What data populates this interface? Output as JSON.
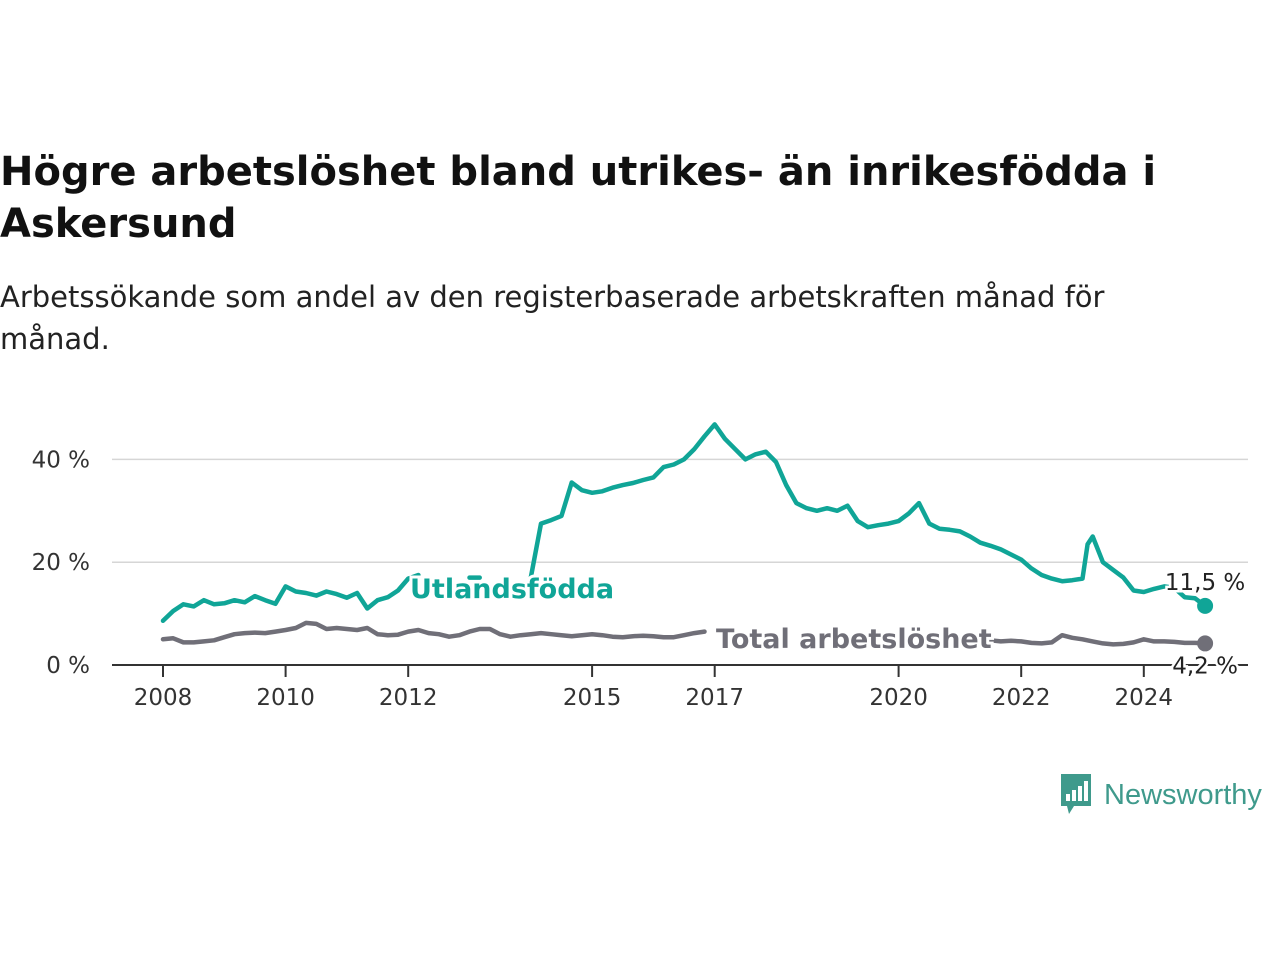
{
  "title": "Högre arbetslöshet bland utrikes- än inrikesfödda i Askersund",
  "subtitle": "Arbetssökande som andel av den registerbaserade arbetskraften månad för månad.",
  "brand": {
    "name": "Newsworthy",
    "icon": "newsworthy-logo-icon",
    "color": "#3f9a8c"
  },
  "chart_data": {
    "type": "line",
    "x_type": "date",
    "xlim": [
      "2008-01",
      "2025-01"
    ],
    "ylim": [
      0,
      50
    ],
    "grid": true,
    "y_ticks": [
      {
        "value": 0,
        "label": "0 %"
      },
      {
        "value": 20,
        "label": "20 %"
      },
      {
        "value": 40,
        "label": "40 %"
      }
    ],
    "x_ticks": [
      {
        "value": "2008-01",
        "label": "2008"
      },
      {
        "value": "2010-01",
        "label": "2010"
      },
      {
        "value": "2012-01",
        "label": "2012"
      },
      {
        "value": "2015-01",
        "label": "2015"
      },
      {
        "value": "2017-01",
        "label": "2017"
      },
      {
        "value": "2020-01",
        "label": "2020"
      },
      {
        "value": "2022-01",
        "label": "2022"
      },
      {
        "value": "2024-01",
        "label": "2024"
      }
    ],
    "series": [
      {
        "name": "Utlandsfödda",
        "color": "#10a597",
        "end_label": "11,5 %",
        "points": [
          [
            "2008-01",
            8.6
          ],
          [
            "2008-03",
            10.5
          ],
          [
            "2008-05",
            11.8
          ],
          [
            "2008-07",
            11.4
          ],
          [
            "2008-09",
            12.6
          ],
          [
            "2008-11",
            11.8
          ],
          [
            "2009-01",
            12.0
          ],
          [
            "2009-03",
            12.6
          ],
          [
            "2009-05",
            12.2
          ],
          [
            "2009-07",
            13.4
          ],
          [
            "2009-09",
            12.6
          ],
          [
            "2009-11",
            11.9
          ],
          [
            "2010-01",
            15.3
          ],
          [
            "2010-03",
            14.3
          ],
          [
            "2010-05",
            14.0
          ],
          [
            "2010-07",
            13.5
          ],
          [
            "2010-09",
            14.3
          ],
          [
            "2010-11",
            13.8
          ],
          [
            "2011-01",
            13.1
          ],
          [
            "2011-03",
            14.0
          ],
          [
            "2011-05",
            11.0
          ],
          [
            "2011-07",
            12.6
          ],
          [
            "2011-09",
            13.2
          ],
          [
            "2011-11",
            14.5
          ],
          [
            "2012-01",
            16.8
          ],
          [
            "2012-03",
            17.5
          ],
          [
            "2013-01",
            17.0
          ],
          [
            "2013-03",
            17.0
          ],
          [
            "2014-01",
            17.0
          ],
          [
            "2014-03",
            27.5
          ],
          [
            "2014-05",
            28.2
          ],
          [
            "2014-07",
            29.0
          ],
          [
            "2014-09",
            35.5
          ],
          [
            "2014-11",
            34.0
          ],
          [
            "2015-01",
            33.5
          ],
          [
            "2015-03",
            33.8
          ],
          [
            "2015-05",
            34.5
          ],
          [
            "2015-07",
            35.0
          ],
          [
            "2015-09",
            35.4
          ],
          [
            "2015-11",
            36.0
          ],
          [
            "2016-01",
            36.5
          ],
          [
            "2016-03",
            38.5
          ],
          [
            "2016-05",
            39.0
          ],
          [
            "2016-07",
            40.0
          ],
          [
            "2016-09",
            42.0
          ],
          [
            "2016-11",
            44.5
          ],
          [
            "2017-01",
            46.8
          ],
          [
            "2017-03",
            44.0
          ],
          [
            "2017-05",
            42.0
          ],
          [
            "2017-07",
            40.0
          ],
          [
            "2017-09",
            41.0
          ],
          [
            "2017-11",
            41.5
          ],
          [
            "2018-01",
            39.5
          ],
          [
            "2018-03",
            35.0
          ],
          [
            "2018-05",
            31.5
          ],
          [
            "2018-07",
            30.5
          ],
          [
            "2018-09",
            30.0
          ],
          [
            "2018-11",
            30.5
          ],
          [
            "2019-01",
            30.0
          ],
          [
            "2019-03",
            31.0
          ],
          [
            "2019-05",
            28.0
          ],
          [
            "2019-07",
            26.8
          ],
          [
            "2019-09",
            27.2
          ],
          [
            "2019-11",
            27.5
          ],
          [
            "2020-01",
            28.0
          ],
          [
            "2020-03",
            29.5
          ],
          [
            "2020-05",
            31.5
          ],
          [
            "2020-07",
            27.5
          ],
          [
            "2020-09",
            26.5
          ],
          [
            "2020-11",
            26.3
          ],
          [
            "2021-01",
            26.0
          ],
          [
            "2021-03",
            25.0
          ],
          [
            "2021-05",
            23.8
          ],
          [
            "2021-07",
            23.2
          ],
          [
            "2021-09",
            22.5
          ],
          [
            "2021-11",
            21.5
          ],
          [
            "2022-01",
            20.5
          ],
          [
            "2022-03",
            18.8
          ],
          [
            "2022-05",
            17.5
          ],
          [
            "2022-07",
            16.8
          ],
          [
            "2022-09",
            16.3
          ],
          [
            "2022-11",
            16.5
          ],
          [
            "2023-01",
            16.8
          ],
          [
            "2023-02",
            23.5
          ],
          [
            "2023-03",
            25.0
          ],
          [
            "2023-05",
            20.0
          ],
          [
            "2023-07",
            18.5
          ],
          [
            "2023-09",
            17.0
          ],
          [
            "2023-11",
            14.5
          ],
          [
            "2024-01",
            14.2
          ],
          [
            "2024-03",
            14.8
          ],
          [
            "2024-05",
            15.3
          ],
          [
            "2024-07",
            15.0
          ],
          [
            "2024-09",
            13.2
          ],
          [
            "2024-11",
            13.0
          ],
          [
            "2025-01",
            11.5
          ]
        ]
      },
      {
        "name": "Total arbetslöshet",
        "color": "#706f78",
        "end_label": "4,2 %",
        "points": [
          [
            "2008-01",
            5.0
          ],
          [
            "2008-03",
            5.2
          ],
          [
            "2008-05",
            4.4
          ],
          [
            "2008-07",
            4.4
          ],
          [
            "2008-09",
            4.6
          ],
          [
            "2008-11",
            4.8
          ],
          [
            "2009-01",
            5.4
          ],
          [
            "2009-03",
            6.0
          ],
          [
            "2009-05",
            6.2
          ],
          [
            "2009-07",
            6.3
          ],
          [
            "2009-09",
            6.2
          ],
          [
            "2009-11",
            6.5
          ],
          [
            "2010-01",
            6.8
          ],
          [
            "2010-03",
            7.2
          ],
          [
            "2010-05",
            8.2
          ],
          [
            "2010-07",
            8.0
          ],
          [
            "2010-09",
            7.0
          ],
          [
            "2010-11",
            7.2
          ],
          [
            "2011-01",
            7.0
          ],
          [
            "2011-03",
            6.8
          ],
          [
            "2011-05",
            7.2
          ],
          [
            "2011-07",
            6.0
          ],
          [
            "2011-09",
            5.8
          ],
          [
            "2011-11",
            5.9
          ],
          [
            "2012-01",
            6.5
          ],
          [
            "2012-03",
            6.8
          ],
          [
            "2012-05",
            6.2
          ],
          [
            "2012-07",
            6.0
          ],
          [
            "2012-09",
            5.5
          ],
          [
            "2012-11",
            5.8
          ],
          [
            "2013-01",
            6.5
          ],
          [
            "2013-03",
            7.0
          ],
          [
            "2013-05",
            7.0
          ],
          [
            "2013-07",
            6.0
          ],
          [
            "2013-09",
            5.5
          ],
          [
            "2013-11",
            5.8
          ],
          [
            "2014-01",
            6.0
          ],
          [
            "2014-03",
            6.2
          ],
          [
            "2014-05",
            6.0
          ],
          [
            "2014-07",
            5.8
          ],
          [
            "2014-09",
            5.6
          ],
          [
            "2014-11",
            5.8
          ],
          [
            "2015-01",
            6.0
          ],
          [
            "2015-03",
            5.8
          ],
          [
            "2015-05",
            5.5
          ],
          [
            "2015-07",
            5.4
          ],
          [
            "2015-09",
            5.6
          ],
          [
            "2015-11",
            5.7
          ],
          [
            "2016-01",
            5.6
          ],
          [
            "2016-03",
            5.4
          ],
          [
            "2016-05",
            5.4
          ],
          [
            "2016-07",
            5.8
          ],
          [
            "2016-09",
            6.2
          ],
          [
            "2016-11",
            6.5
          ],
          [
            "2021-07",
            4.8
          ],
          [
            "2021-09",
            4.6
          ],
          [
            "2021-11",
            4.7
          ],
          [
            "2022-01",
            4.6
          ],
          [
            "2022-03",
            4.3
          ],
          [
            "2022-05",
            4.2
          ],
          [
            "2022-07",
            4.4
          ],
          [
            "2022-09",
            5.8
          ],
          [
            "2022-11",
            5.3
          ],
          [
            "2023-01",
            5.0
          ],
          [
            "2023-03",
            4.6
          ],
          [
            "2023-05",
            4.2
          ],
          [
            "2023-07",
            4.0
          ],
          [
            "2023-09",
            4.1
          ],
          [
            "2023-11",
            4.4
          ],
          [
            "2024-01",
            5.0
          ],
          [
            "2024-03",
            4.6
          ],
          [
            "2024-05",
            4.6
          ],
          [
            "2024-07",
            4.5
          ],
          [
            "2024-09",
            4.3
          ],
          [
            "2024-11",
            4.3
          ],
          [
            "2025-01",
            4.2
          ]
        ]
      }
    ]
  }
}
